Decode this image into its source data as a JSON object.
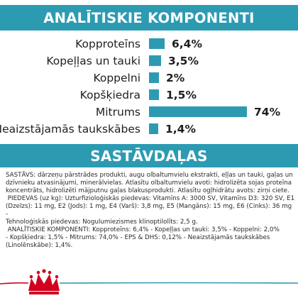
{
  "analysis": {
    "title": "ANALĪTISKIE KOMPONENTI",
    "max_value": 74,
    "items": [
      {
        "label": "Kopproteīns",
        "value": 6.4,
        "display": "6,4%"
      },
      {
        "label": "Kopeļļas un tauki",
        "value": 3.5,
        "display": "3,5%"
      },
      {
        "label": "Koppelni",
        "value": 2.0,
        "display": "2%"
      },
      {
        "label": "Kopšķiedra",
        "value": 1.5,
        "display": "1,5%"
      },
      {
        "label": "Mitrums",
        "value": 74,
        "display": "74%"
      },
      {
        "label": "Neaizstājamās taukskābes",
        "value": 1.4,
        "display": "1,4%"
      }
    ]
  },
  "composition": {
    "title": "SASTĀVDAĻAS",
    "text": "SASTĀVS: dārzeņu pārstrādes produkti, augu olbaltumvielu ekstrakti, eļļas un tauki, gaļas un\ndzīvnieku atvasinājumi, minerālvielas. Atlasītu olbaltumvielu avoti: hidrolizēta sojas proteīna\nkoncentrāts, hidrolizēti mājputnu gaļas blakusprodukti. Atlasītu ogļhidrātu avots: zirņi ciete.\n PIEDEVAS (uz kg): Uzturfizioloģiskās piedevas: Vitamīns A: 3000 SV, Vitamīns D3: 320 SV, E1\n(Dzelzs): 11 mg, E2 (Jods): 1 mg, E4 (Varš): 3,8 mg, E5 (Mangāns): 15 mg, E6 (Cinks): 36 mg -\nTehnoloģiskās piedevas: Nogulumiezismes klinoptilolīts: 2,5 g.\n ANALĪTISKIE KOMPONENTI: Kopproteīns: 6,4% - Kopeļļas un tauki: 3,5% - Koppelni: 2,0%\n- Kopšķiedra: 1,5% - Mitrums: 74,0% - EPS & DHS: 0,12% - Neaizstājamās taukskābes\n(Linolēnskābe): 1,4%."
  },
  "footer": {
    "line_colors": [
      "#d2001e",
      "#2c9bb2"
    ],
    "logo_icon": "royal-canin-crown-icon"
  }
}
